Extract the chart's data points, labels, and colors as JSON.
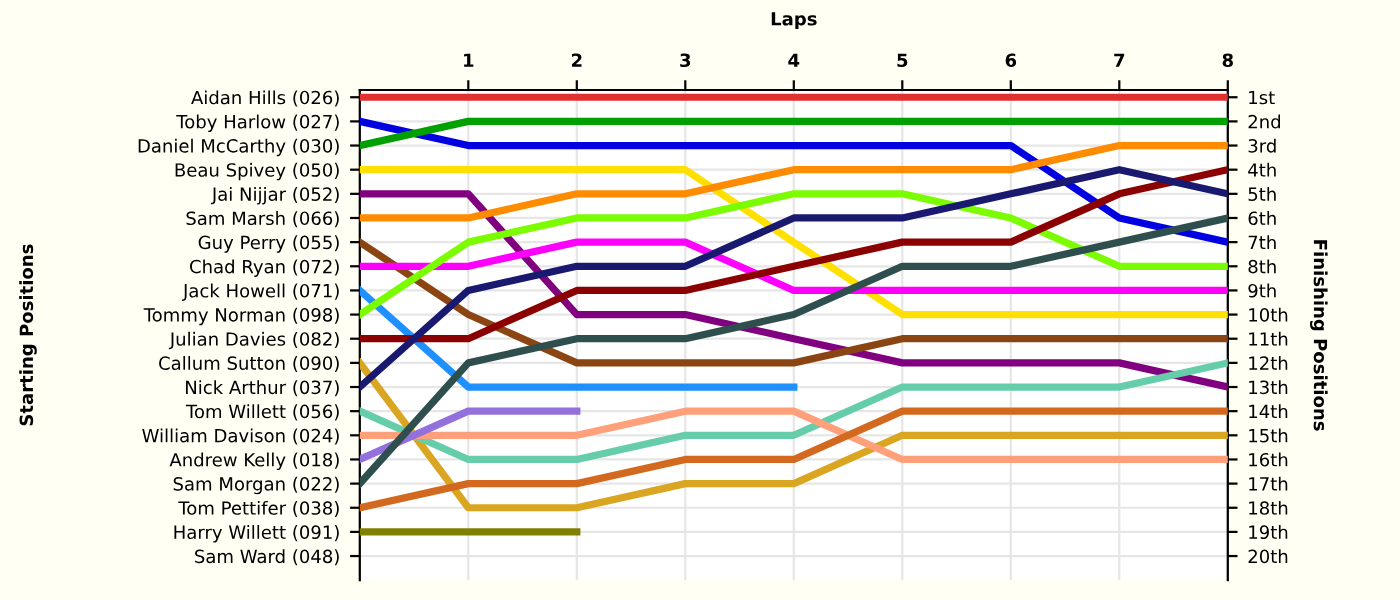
{
  "chart_data": {
    "type": "line",
    "xlabel": "Laps",
    "annotations": [
      "Starting Positions"
    ],
    "y2label": "Finishing Positions",
    "x": [
      0,
      1,
      2,
      3,
      4,
      5,
      6,
      7,
      8
    ],
    "xlim": [
      0,
      8
    ],
    "xticks": [
      1,
      2,
      3,
      4,
      5,
      6,
      7,
      8
    ],
    "y_categories": [
      "Aidan Hills (026)",
      "Toby Harlow (027)",
      "Daniel McCarthy (030)",
      "Beau Spivey (050)",
      "Jai Nijjar (052)",
      "Sam Marsh (066)",
      "Guy Perry (055)",
      "Chad Ryan (072)",
      "Jack Howell (071)",
      "Tommy Norman (098)",
      "Julian Davies (082)",
      "Callum Sutton (090)",
      "Nick Arthur (037)",
      "Tom Willett (056)",
      "William Davison (024)",
      "Andrew Kelly (018)",
      "Sam Morgan (022)",
      "Tom Pettifer (038)",
      "Harry Willett (091)",
      "Sam Ward (048)"
    ],
    "y2lim": [
      21,
      0.7
    ],
    "y2ticks": [
      {
        "value": 1,
        "label": "1st"
      },
      {
        "value": 2,
        "label": "2nd"
      },
      {
        "value": 3,
        "label": "3rd"
      },
      {
        "value": 4,
        "label": "4th"
      },
      {
        "value": 5,
        "label": "5th"
      },
      {
        "value": 6,
        "label": "6th"
      },
      {
        "value": 7,
        "label": "7th"
      },
      {
        "value": 8,
        "label": "8th"
      },
      {
        "value": 9,
        "label": "9th"
      },
      {
        "value": 10,
        "label": "10th"
      },
      {
        "value": 11,
        "label": "11th"
      },
      {
        "value": 12,
        "label": "12th"
      },
      {
        "value": 13,
        "label": "13th"
      },
      {
        "value": 14,
        "label": "14th"
      },
      {
        "value": 15,
        "label": "15th"
      },
      {
        "value": 16,
        "label": "16th"
      },
      {
        "value": 17,
        "label": "17th"
      },
      {
        "value": 18,
        "label": "18th"
      },
      {
        "value": 19,
        "label": "19th"
      },
      {
        "value": 20,
        "label": "20th"
      }
    ],
    "grid": true,
    "marker": "none",
    "line_style": "solid",
    "series": [
      {
        "axis": "y2",
        "color": "#e03030",
        "values": [
          1,
          1,
          1,
          1,
          1,
          1,
          1,
          1,
          1
        ]
      },
      {
        "axis": "y2",
        "color": "#0000e0",
        "values": [
          2,
          3,
          3,
          3,
          3,
          3,
          3,
          6,
          7
        ]
      },
      {
        "axis": "y2",
        "color": "#00a000",
        "values": [
          3,
          2,
          2,
          2,
          2,
          2,
          2,
          2,
          2
        ]
      },
      {
        "axis": "y2",
        "color": "#ffe000",
        "values": [
          4,
          4,
          4,
          4,
          7,
          10,
          10,
          10,
          10
        ]
      },
      {
        "axis": "y2",
        "color": "#800080",
        "values": [
          5,
          5,
          10,
          10,
          11,
          12,
          12,
          12,
          13
        ]
      },
      {
        "axis": "y2",
        "color": "#ff8c00",
        "values": [
          6,
          6,
          5,
          5,
          4,
          4,
          4,
          3,
          3
        ]
      },
      {
        "axis": "y2",
        "color": "#8b4513",
        "values": [
          7,
          10,
          12,
          12,
          12,
          11,
          11,
          11,
          11
        ]
      },
      {
        "axis": "y2",
        "color": "#ff00ff",
        "values": [
          8,
          8,
          7,
          7,
          9,
          9,
          9,
          9,
          9
        ]
      },
      {
        "axis": "y2",
        "color": "#1e90ff",
        "values": [
          9,
          13,
          13,
          13,
          13,
          null,
          null,
          null,
          null
        ]
      },
      {
        "axis": "y2",
        "color": "#7cfc00",
        "values": [
          10,
          7,
          6,
          6,
          5,
          5,
          6,
          8,
          8
        ]
      },
      {
        "axis": "y2",
        "color": "#8b0000",
        "values": [
          11,
          11,
          9,
          9,
          8,
          7,
          7,
          5,
          4
        ]
      },
      {
        "axis": "y2",
        "color": "#daa520",
        "values": [
          12,
          18,
          18,
          17,
          17,
          15,
          15,
          15,
          15
        ]
      },
      {
        "axis": "y2",
        "color": "#191970",
        "values": [
          13,
          9,
          8,
          8,
          6,
          6,
          5,
          4,
          5
        ]
      },
      {
        "axis": "y2",
        "color": "#66cdaa",
        "values": [
          14,
          16,
          16,
          15,
          15,
          13,
          13,
          13,
          12
        ]
      },
      {
        "axis": "y2",
        "color": "#ffa07a",
        "values": [
          15,
          15,
          15,
          14,
          14,
          16,
          16,
          16,
          16
        ]
      },
      {
        "axis": "y2",
        "color": "#9370db",
        "values": [
          16,
          14,
          14,
          null,
          null,
          null,
          null,
          null,
          null
        ]
      },
      {
        "axis": "y2",
        "color": "#2f4f4f",
        "values": [
          17,
          12,
          11,
          11,
          10,
          8,
          8,
          7,
          6
        ]
      },
      {
        "axis": "y2",
        "color": "#d2691e",
        "values": [
          18,
          17,
          17,
          16,
          16,
          14,
          14,
          14,
          14
        ]
      },
      {
        "axis": "y2",
        "color": "#808000",
        "values": [
          19,
          19,
          19,
          null,
          null,
          null,
          null,
          null,
          null
        ]
      }
    ]
  }
}
